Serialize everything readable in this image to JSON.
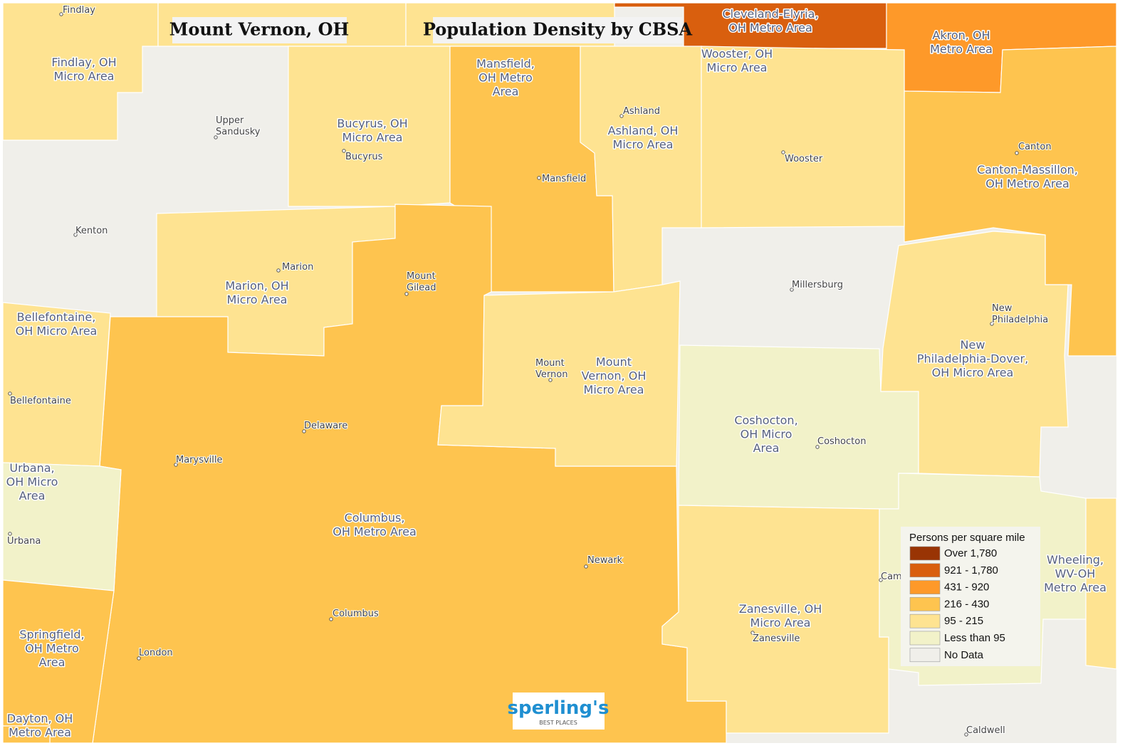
{
  "header": {
    "place": "Mount Vernon, OH",
    "title": "Population Density by CBSA"
  },
  "legend": {
    "title": "Persons per square mile",
    "items": [
      {
        "label": "Over 1,780",
        "color": "#993404"
      },
      {
        "label": "921 - 1,780",
        "color": "#d95f0e"
      },
      {
        "label": "431 - 920",
        "color": "#fe9929"
      },
      {
        "label": "216 - 430",
        "color": "#fec44f"
      },
      {
        "label": "95 - 215",
        "color": "#fee391"
      },
      {
        "label": "Less than 95",
        "color": "#f2f2c9"
      },
      {
        "label": "No Data",
        "color": "#f0efea"
      }
    ]
  },
  "areas": [
    {
      "lines": [
        "Findlay, OH",
        "Micro Area"
      ]
    },
    {
      "lines": [
        "Mansfield,",
        "OH Metro",
        "Area"
      ]
    },
    {
      "lines": [
        "Cleveland-Elyria,",
        "OH Metro Area"
      ]
    },
    {
      "lines": [
        "Akron, OH",
        "Metro Area"
      ]
    },
    {
      "lines": [
        "Wooster, OH",
        "Micro Area"
      ]
    },
    {
      "lines": [
        "Bucyrus, OH",
        "Micro Area"
      ]
    },
    {
      "lines": [
        "Ashland, OH",
        "Micro Area"
      ]
    },
    {
      "lines": [
        "Canton-Massillon,",
        "OH Metro Area"
      ]
    },
    {
      "lines": [
        "Marion, OH",
        "Micro Area"
      ]
    },
    {
      "lines": [
        "Bellefontaine,",
        "OH Micro Area"
      ]
    },
    {
      "lines": [
        "Mount",
        "Vernon, OH",
        "Micro Area"
      ]
    },
    {
      "lines": [
        "New",
        "Philadelphia-Dover,",
        "OH Micro Area"
      ]
    },
    {
      "lines": [
        "Coshocton,",
        "OH Micro",
        "Area"
      ]
    },
    {
      "lines": [
        "Urbana,",
        "OH Micro",
        "Area"
      ]
    },
    {
      "lines": [
        "Columbus,",
        "OH Metro Area"
      ]
    },
    {
      "lines": [
        "Wheeling,",
        "WV-OH",
        "Metro Area"
      ]
    },
    {
      "lines": [
        "Zanesville, OH",
        "Micro Area"
      ]
    },
    {
      "lines": [
        "Springfield,",
        "OH Metro",
        "Area"
      ]
    },
    {
      "lines": [
        "Dayton, OH",
        "Metro Area"
      ]
    }
  ],
  "cities": [
    {
      "lines": [
        "Findlay"
      ]
    },
    {
      "lines": [
        "Upper",
        "Sandusky"
      ]
    },
    {
      "lines": [
        "Bucyrus"
      ]
    },
    {
      "lines": [
        "Ashland"
      ]
    },
    {
      "lines": [
        "Mansfield"
      ]
    },
    {
      "lines": [
        "Wooster"
      ]
    },
    {
      "lines": [
        "Canton"
      ]
    },
    {
      "lines": [
        "Kenton"
      ]
    },
    {
      "lines": [
        "Marion"
      ]
    },
    {
      "lines": [
        "Mount",
        "Gilead"
      ]
    },
    {
      "lines": [
        "Millersburg"
      ]
    },
    {
      "lines": [
        "New",
        "Philadelphia"
      ]
    },
    {
      "lines": [
        "Mount",
        "Vernon"
      ]
    },
    {
      "lines": [
        "Bellefontaine"
      ]
    },
    {
      "lines": [
        "Delaware"
      ]
    },
    {
      "lines": [
        "Coshocton"
      ]
    },
    {
      "lines": [
        "Marysville"
      ]
    },
    {
      "lines": [
        "Urbana"
      ]
    },
    {
      "lines": [
        "Newark"
      ]
    },
    {
      "lines": [
        "Columbus"
      ]
    },
    {
      "lines": [
        "Zanesville"
      ]
    },
    {
      "lines": [
        "London"
      ]
    },
    {
      "lines": [
        "Caldwell"
      ]
    },
    {
      "lines": [
        "Cam"
      ]
    }
  ],
  "logo": {
    "name": "sperling's",
    "tagline": "BEST PLACES"
  }
}
